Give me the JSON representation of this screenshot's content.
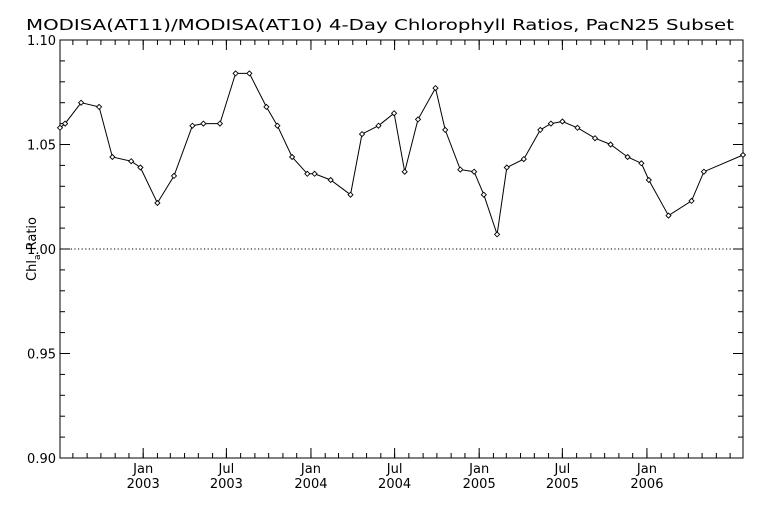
{
  "chart_data": {
    "type": "line",
    "title": "MODISA(AT11)/MODISA(AT10) 4-Day Chlorophyll Ratios, PacN25 Subset",
    "ylabel_main": "Chl",
    "ylabel_sub": "a",
    "ylabel_rest": " Ratio",
    "xlabel": "",
    "xlim": [
      "2002-07-04",
      "2006-07-29"
    ],
    "ylim": [
      0.9,
      1.1
    ],
    "yticks": [
      "0.90",
      "0.95",
      "1.00",
      "1.05",
      "1.10"
    ],
    "ytick_values": [
      0.9,
      0.95,
      1.0,
      1.05,
      1.1
    ],
    "xticks": [
      {
        "date": "2003-01-01",
        "month": "Jan",
        "year": "2003"
      },
      {
        "date": "2003-07-01",
        "month": "Jul",
        "year": "2003"
      },
      {
        "date": "2004-01-01",
        "month": "Jan",
        "year": "2004"
      },
      {
        "date": "2004-07-01",
        "month": "Jul",
        "year": "2004"
      },
      {
        "date": "2005-01-01",
        "month": "Jan",
        "year": "2005"
      },
      {
        "date": "2005-07-01",
        "month": "Jul",
        "year": "2005"
      },
      {
        "date": "2006-01-01",
        "month": "Jan",
        "year": "2006"
      }
    ],
    "reference_line": {
      "y": 1.0,
      "style": "dotted"
    },
    "grid": false,
    "series": [
      {
        "marker": "diamond",
        "color": "#000000",
        "x": [
          "2002-07-04",
          "2002-07-15",
          "2002-08-19",
          "2002-09-27",
          "2002-10-26",
          "2002-12-06",
          "2002-12-26",
          "2003-02-01",
          "2003-03-09",
          "2003-04-18",
          "2003-05-12",
          "2003-06-17",
          "2003-07-21",
          "2003-08-20",
          "2003-09-26",
          "2003-10-20",
          "2003-11-21",
          "2003-12-24",
          "2004-01-09",
          "2004-02-13",
          "2004-03-27",
          "2004-04-21",
          "2004-05-27",
          "2004-06-30",
          "2004-07-23",
          "2004-08-21",
          "2004-09-28",
          "2004-10-19",
          "2004-11-21",
          "2004-12-21",
          "2005-01-11",
          "2005-02-09",
          "2005-03-02",
          "2005-04-08",
          "2005-05-14",
          "2005-06-06",
          "2005-07-01",
          "2005-08-03",
          "2005-09-10",
          "2005-10-14",
          "2005-11-20",
          "2005-12-20",
          "2006-01-05",
          "2006-02-17",
          "2006-04-08",
          "2006-05-05",
          "2006-07-29"
        ],
        "values": [
          1.058,
          1.06,
          1.07,
          1.068,
          1.044,
          1.042,
          1.039,
          1.022,
          1.035,
          1.059,
          1.06,
          1.06,
          1.084,
          1.084,
          1.068,
          1.059,
          1.044,
          1.036,
          1.036,
          1.033,
          1.026,
          1.055,
          1.059,
          1.065,
          1.037,
          1.062,
          1.077,
          1.057,
          1.038,
          1.037,
          1.026,
          1.007,
          1.039,
          1.043,
          1.057,
          1.06,
          1.061,
          1.058,
          1.053,
          1.05,
          1.044,
          1.041,
          1.033,
          1.016,
          1.023,
          1.037,
          1.045
        ]
      }
    ]
  }
}
